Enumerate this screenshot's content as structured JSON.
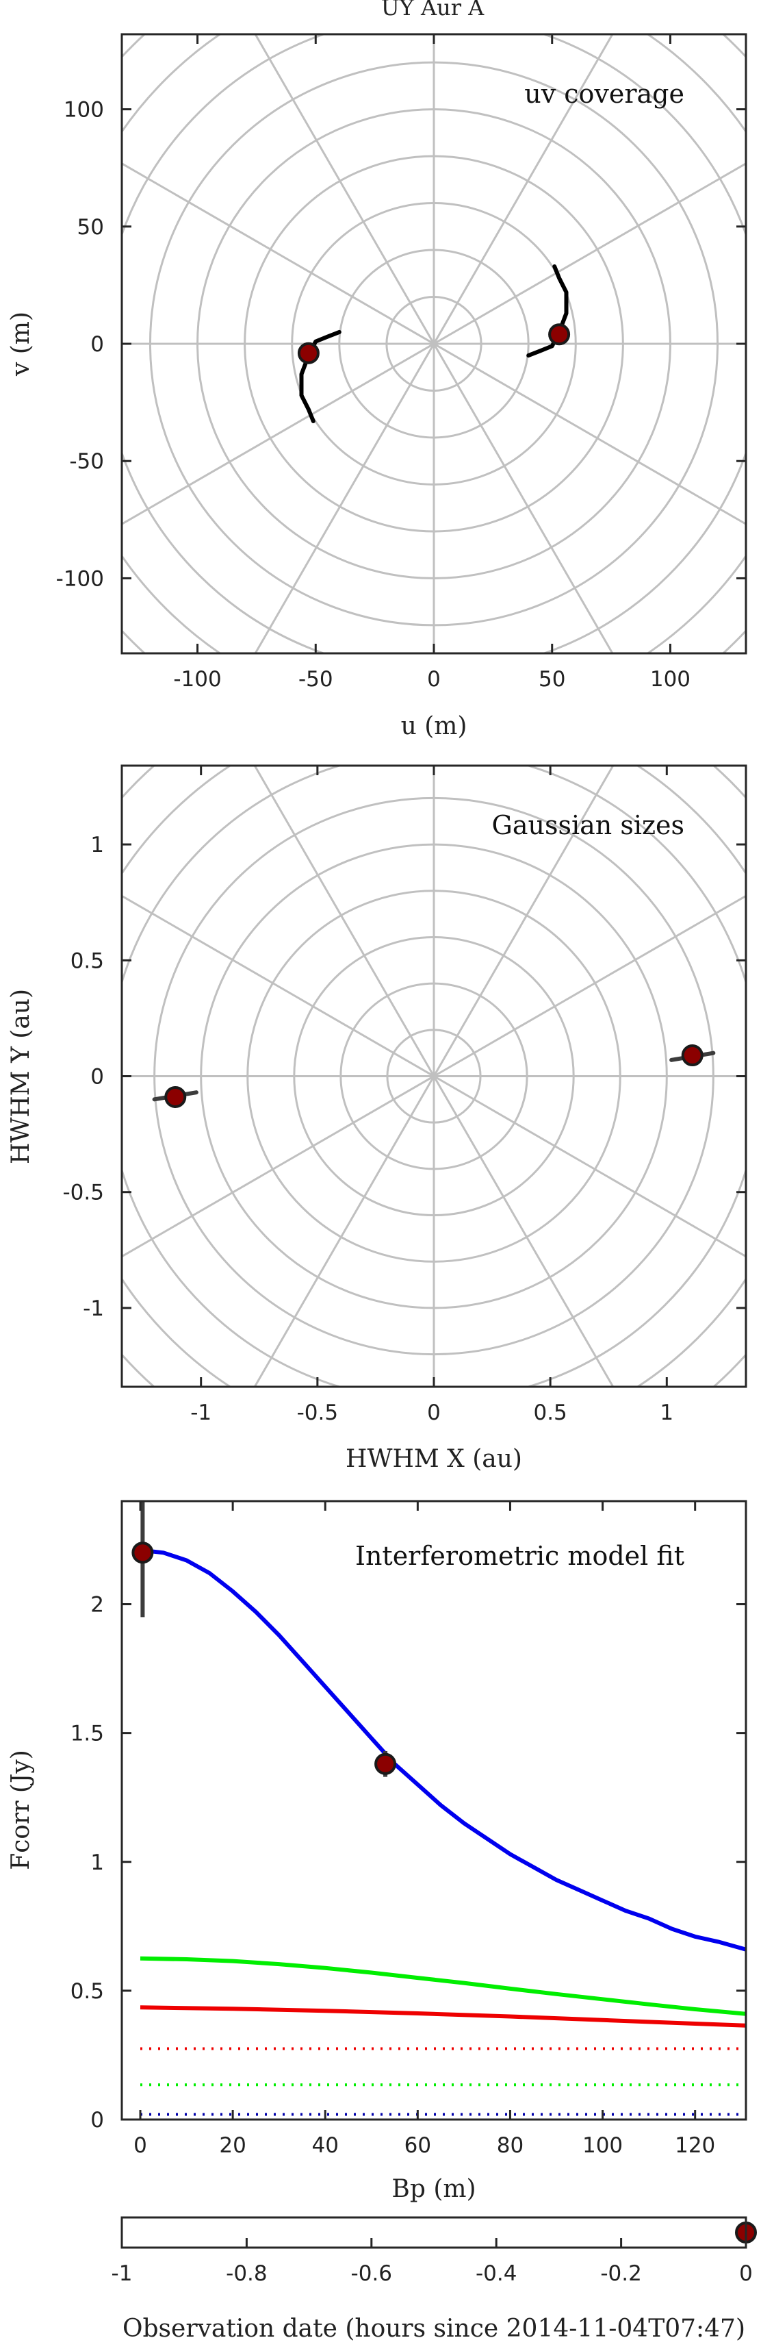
{
  "figure": {
    "title": "UY Aur A"
  },
  "chart_data": [
    {
      "id": "uv",
      "type": "scatter",
      "title": "uv coverage",
      "xlabel": "u (m)",
      "ylabel": "v (m)",
      "xlim": [
        -132,
        132
      ],
      "ylim": [
        -132,
        132
      ],
      "xticks": [
        -100,
        -50,
        0,
        50,
        100
      ],
      "yticks": [
        -100,
        -50,
        0,
        50,
        100
      ],
      "xtick_labels": [
        "-100",
        "-50",
        "0",
        "50",
        "100"
      ],
      "ytick_labels": [
        "-100",
        "-50",
        "0",
        "50",
        "100"
      ],
      "grid": "polar",
      "grid_rings": [
        20,
        40,
        60,
        80,
        100,
        120,
        140,
        160,
        180
      ],
      "grid_spokes_deg": [
        0,
        30,
        60,
        90,
        120,
        150
      ],
      "tracks": [
        [
          [
            40,
            -5
          ],
          [
            45,
            -3
          ],
          [
            50,
            -1
          ],
          [
            53,
            5
          ],
          [
            56,
            13
          ],
          [
            56,
            22
          ],
          [
            53,
            28
          ],
          [
            51,
            33
          ]
        ],
        [
          [
            -40,
            5
          ],
          [
            -45,
            3
          ],
          [
            -50,
            1
          ],
          [
            -53,
            -5
          ],
          [
            -56,
            -13
          ],
          [
            -56,
            -22
          ],
          [
            -53,
            -28
          ],
          [
            -51,
            -33
          ]
        ]
      ],
      "points": [
        [
          53,
          4
        ],
        [
          -53,
          -4
        ]
      ]
    },
    {
      "id": "sizes",
      "type": "scatter",
      "title": "Gaussian sizes",
      "xlabel": "HWHM X (au)",
      "ylabel": "HWHM Y (au)",
      "xlim": [
        -1.34,
        1.34
      ],
      "ylim": [
        -1.34,
        1.34
      ],
      "xticks": [
        -1,
        -0.5,
        0,
        0.5,
        1
      ],
      "yticks": [
        -1,
        -0.5,
        0,
        0.5,
        1
      ],
      "xtick_labels": [
        "-1",
        "-0.5",
        "0",
        "0.5",
        "1"
      ],
      "ytick_labels": [
        "-1",
        "-0.5",
        "0",
        "0.5",
        "1"
      ],
      "grid": "polar",
      "grid_rings": [
        0.2,
        0.4,
        0.6,
        0.8,
        1.0,
        1.2,
        1.4,
        1.6,
        1.8
      ],
      "grid_spokes_deg": [
        0,
        30,
        60,
        90,
        120,
        150
      ],
      "error_segments": [
        [
          [
            1.02,
            0.07
          ],
          [
            1.2,
            0.1
          ]
        ],
        [
          [
            -1.02,
            -0.07
          ],
          [
            -1.2,
            -0.1
          ]
        ]
      ],
      "points": [
        [
          1.11,
          0.09
        ],
        [
          -1.11,
          -0.09
        ]
      ]
    },
    {
      "id": "fit",
      "type": "line",
      "title": "Interferometric model fit",
      "xlabel": "Bp (m)",
      "ylabel": "Fcorr (Jy)",
      "xlim": [
        -4,
        131
      ],
      "ylim": [
        0,
        2.4
      ],
      "xticks": [
        0,
        20,
        40,
        60,
        80,
        100,
        120
      ],
      "yticks": [
        0,
        0.5,
        1,
        1.5,
        2
      ],
      "xtick_labels": [
        "0",
        "20",
        "40",
        "60",
        "80",
        "100",
        "120"
      ],
      "ytick_labels": [
        "0",
        "0.5",
        "1",
        "1.5",
        "2"
      ],
      "grid": false,
      "series": [
        {
          "color": "#0000ee",
          "style": "solid",
          "x": [
            0,
            5,
            10,
            15,
            20,
            25,
            30,
            35,
            40,
            45,
            50,
            55,
            60,
            65,
            70,
            75,
            80,
            85,
            90,
            95,
            100,
            105,
            110,
            115,
            120,
            125,
            131
          ],
          "values": [
            2.21,
            2.2,
            2.17,
            2.12,
            2.05,
            1.97,
            1.88,
            1.78,
            1.68,
            1.58,
            1.48,
            1.38,
            1.3,
            1.22,
            1.15,
            1.09,
            1.03,
            0.98,
            0.93,
            0.89,
            0.85,
            0.81,
            0.78,
            0.74,
            0.71,
            0.69,
            0.66
          ]
        },
        {
          "color": "#00ee00",
          "style": "solid",
          "x": [
            0,
            10,
            20,
            30,
            40,
            50,
            60,
            70,
            80,
            90,
            100,
            110,
            120,
            131
          ],
          "values": [
            0.625,
            0.622,
            0.615,
            0.603,
            0.588,
            0.57,
            0.55,
            0.53,
            0.508,
            0.487,
            0.467,
            0.447,
            0.428,
            0.41
          ]
        },
        {
          "color": "#ee0000",
          "style": "solid",
          "x": [
            0,
            20,
            40,
            60,
            80,
            100,
            120,
            131
          ],
          "values": [
            0.435,
            0.43,
            0.422,
            0.412,
            0.4,
            0.386,
            0.372,
            0.365
          ]
        },
        {
          "color": "#ee0000",
          "style": "dotted",
          "x": [
            0,
            131
          ],
          "values": [
            0.275,
            0.275
          ]
        },
        {
          "color": "#00ee00",
          "style": "dotted",
          "x": [
            0,
            131
          ],
          "values": [
            0.135,
            0.135
          ]
        },
        {
          "color": "#0000aa",
          "style": "dotted",
          "x": [
            0,
            131
          ],
          "values": [
            0.02,
            0.02
          ]
        }
      ],
      "points": [
        {
          "x": 0.5,
          "y": 2.2,
          "err": 0.25
        },
        {
          "x": 53,
          "y": 1.38,
          "err": 0.05
        }
      ]
    },
    {
      "id": "time",
      "type": "scatter",
      "title": "",
      "xlabel": "Observation date (hours since 2014-11-04T07:47)",
      "ylabel": "",
      "xlim": [
        -1,
        0
      ],
      "xticks": [
        -1,
        -0.8,
        -0.6,
        -0.4,
        -0.2,
        0
      ],
      "xtick_labels": [
        "-1",
        "-0.8",
        "-0.6",
        "-0.4",
        "-0.2",
        "0"
      ],
      "points": [
        [
          0,
          0
        ]
      ]
    }
  ],
  "colors": {
    "grid": "#c0c0c0",
    "axis": "#262626",
    "marker_fill": "#8b0000",
    "marker_edge": "#1a1a1a",
    "track": "#000000",
    "error_bar": "#3c3c3c"
  }
}
